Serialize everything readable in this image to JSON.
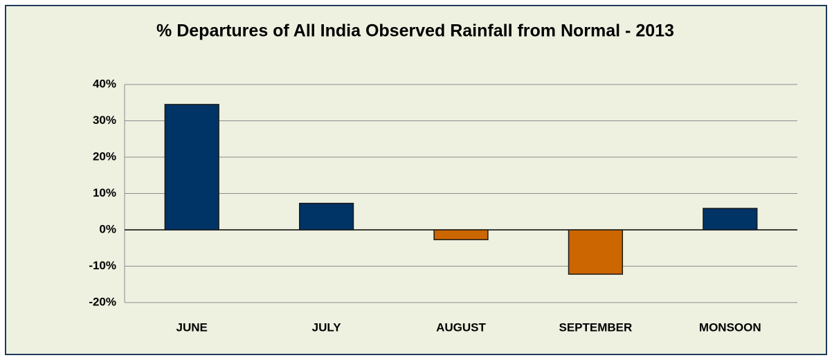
{
  "chart_data": {
    "type": "bar",
    "title": "% Departures of All India Observed Rainfall from Normal - 2013",
    "categories": [
      "JUNE",
      "JULY",
      "AUGUST",
      "SEPTEMBER",
      "MONSOON"
    ],
    "values": [
      34.5,
      7.3,
      -2.7,
      -12.2,
      5.9
    ],
    "colors": [
      "#003366",
      "#003366",
      "#cc6600",
      "#cc6600",
      "#003366"
    ],
    "ylim": [
      -20,
      40
    ],
    "yticks": [
      {
        "value": -20,
        "label": "-20%"
      },
      {
        "value": -10,
        "label": "-10%"
      },
      {
        "value": 0,
        "label": "0%"
      },
      {
        "value": 10,
        "label": "10%"
      },
      {
        "value": 20,
        "label": "20%"
      },
      {
        "value": 30,
        "label": "30%"
      },
      {
        "value": 40,
        "label": "40%"
      }
    ],
    "grid": true
  }
}
